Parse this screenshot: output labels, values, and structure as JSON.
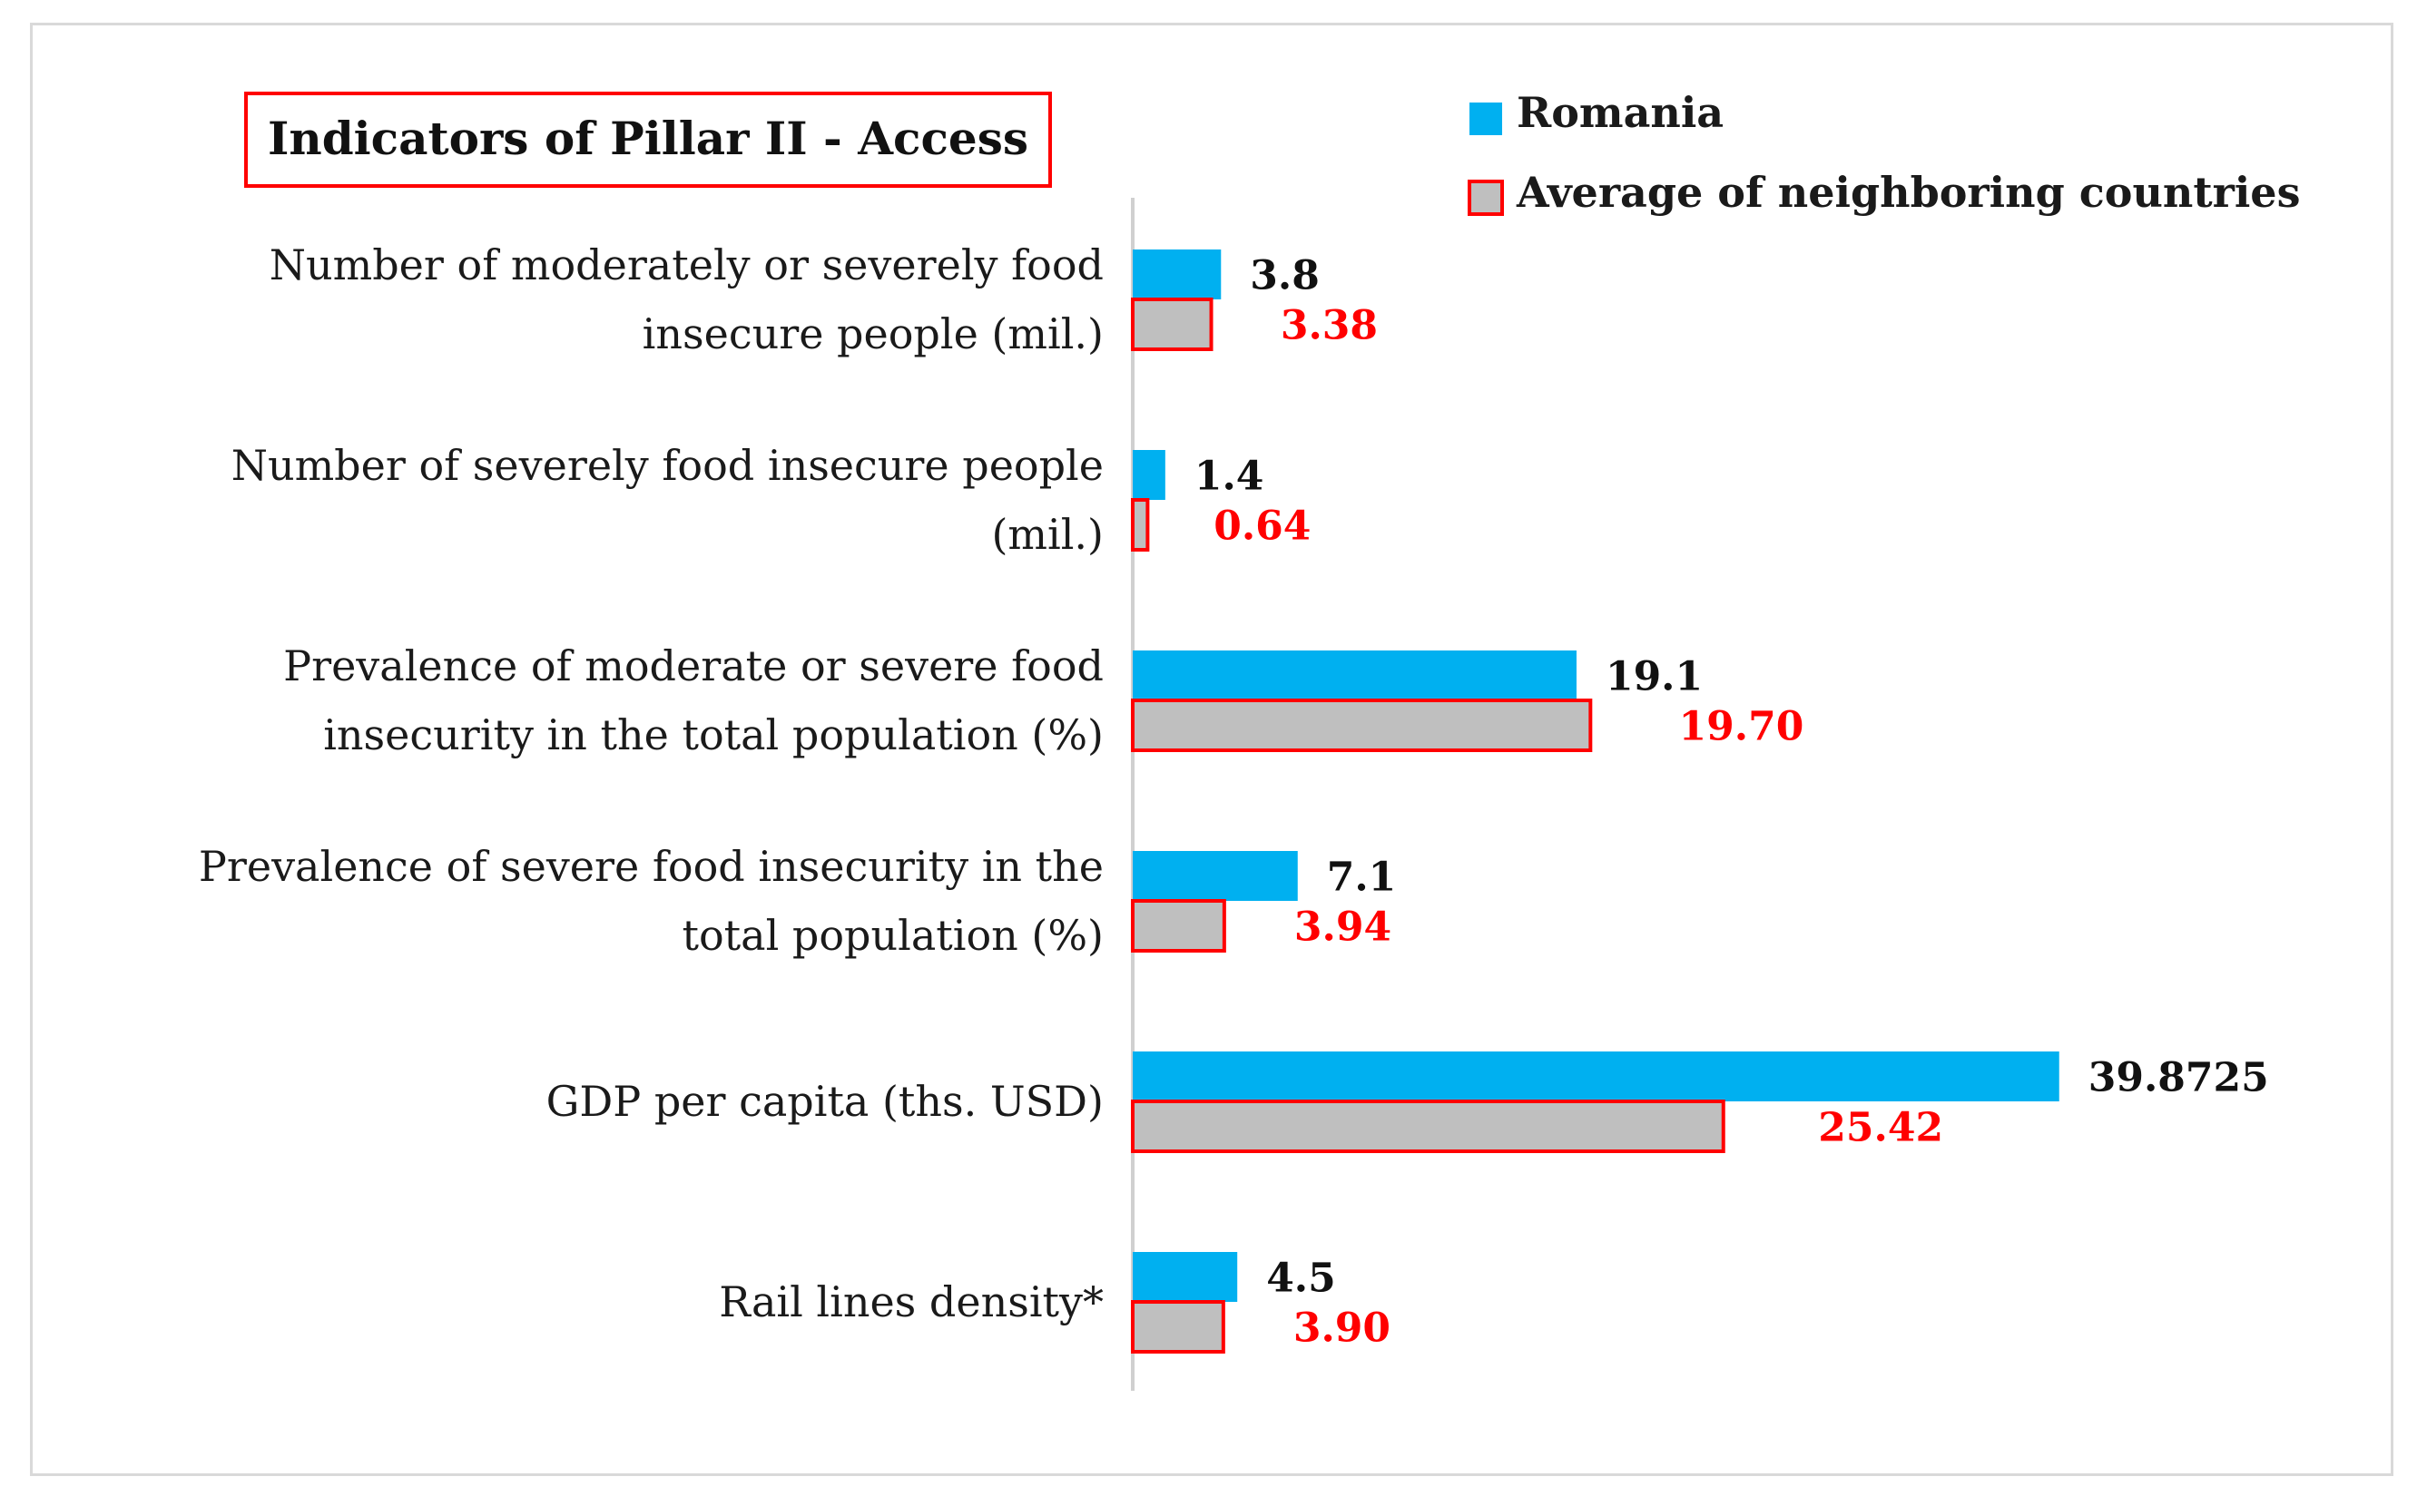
{
  "chart_data": {
    "type": "bar",
    "orientation": "horizontal",
    "title": "Indicators of Pillar II - Access",
    "categories": [
      [
        "Number of moderately or severely food",
        "insecure people (mil.)"
      ],
      [
        "Number of severely food insecure people",
        "(mil.)"
      ],
      [
        "Prevalence of moderate or severe food",
        "insecurity in the total population (%)"
      ],
      [
        "Prevalence of severe food insecurity in the",
        "total population (%)"
      ],
      [
        "GDP per capita (ths. USD)"
      ],
      [
        "Rail lines density*"
      ]
    ],
    "series": [
      {
        "name": "Romania",
        "values": [
          3.8,
          1.4,
          19.1,
          7.1,
          39.8725,
          4.5
        ],
        "labels": [
          "3.8",
          "1.4",
          "19.1",
          "7.1",
          "39.8725",
          "4.5"
        ],
        "fill": "#00b0f0",
        "stroke": "#00b0f0",
        "label_color": "#111111"
      },
      {
        "name": "Average of neighboring countries",
        "values": [
          3.38,
          0.64,
          19.7,
          3.94,
          25.42,
          3.9
        ],
        "labels": [
          "3.38",
          "0.64",
          "19.70",
          "3.94",
          "25.42",
          "3.90"
        ],
        "fill": "#bfbfbf",
        "stroke": "#ff0000",
        "label_color": "#ff0000"
      }
    ],
    "xlim": [
      0,
      40
    ],
    "grid": false,
    "legend_position": "top-right",
    "title_box_color": "#ff0000"
  }
}
